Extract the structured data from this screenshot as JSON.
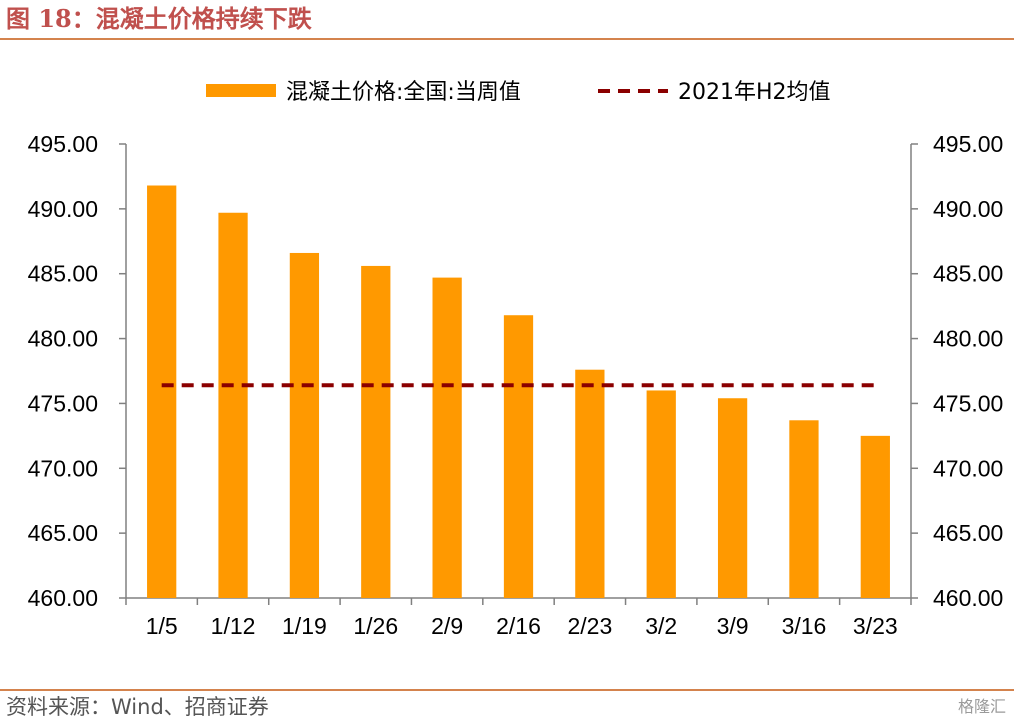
{
  "header": {
    "figure_title": "图 18：混凝土价格持续下跌"
  },
  "footer": {
    "source": "资料来源：Wind、招商证券",
    "watermark": "格隆汇"
  },
  "colors": {
    "title": "#c0504d",
    "bar": "#ff9900",
    "reference_line": "#8b0000",
    "rule": "#c55a11"
  },
  "chart_data": {
    "type": "bar",
    "title": "",
    "xlabel": "",
    "ylabel": "",
    "categories": [
      "1/5",
      "1/12",
      "1/19",
      "1/26",
      "2/9",
      "2/16",
      "2/23",
      "3/2",
      "3/9",
      "3/16",
      "3/23"
    ],
    "series": [
      {
        "name": "混凝土价格:全国:当周值",
        "type": "bar",
        "values": [
          491.8,
          489.7,
          486.6,
          485.6,
          484.7,
          481.8,
          477.6,
          476.0,
          475.4,
          473.7,
          472.5
        ]
      },
      {
        "name": "2021年H2均值",
        "type": "line",
        "style": "dashed",
        "values": [
          476.4,
          476.4,
          476.4,
          476.4,
          476.4,
          476.4,
          476.4,
          476.4,
          476.4,
          476.4,
          476.4
        ]
      }
    ],
    "ylim": [
      460,
      495
    ],
    "yticks": [
      "460.00",
      "465.00",
      "470.00",
      "475.00",
      "480.00",
      "485.00",
      "490.00",
      "495.00"
    ],
    "y_right_axis": true,
    "grid": false,
    "legend_position": "top"
  }
}
